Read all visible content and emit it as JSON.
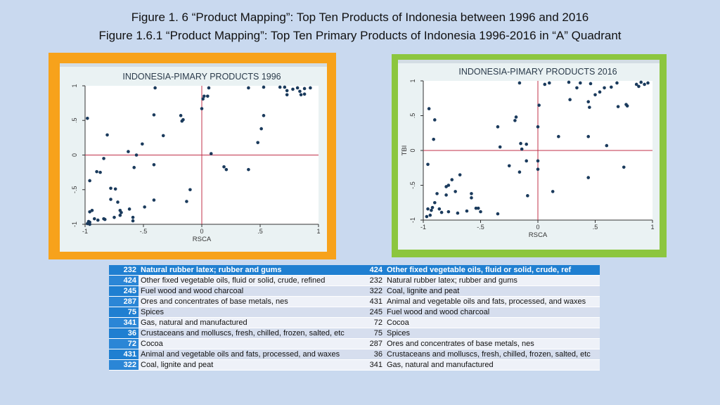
{
  "header": {
    "title": "Figure 1. 6 “Product Mapping”: Top Ten Products of Indonesia between 1996 and 2016",
    "subtitle": "Figure 1.6.1 “Product Mapping”: Top Ten Primary Products of Indonesia 1996-2016 in “A” Quadrant"
  },
  "colors": {
    "left_frame": "#f7a21b",
    "right_frame": "#8cc63f",
    "points": "#1a3a5c",
    "reference_lines": "#c0304a"
  },
  "chart_data": [
    {
      "type": "scatter",
      "title": "INDONESIA-PIMARY PRODUCTS 1996",
      "xlabel": "RSCA",
      "ylabel": "",
      "xlim": [
        -1,
        1
      ],
      "ylim": [
        -1,
        1
      ],
      "xticks": [
        "-1",
        "-.5",
        "0",
        ".5",
        "1"
      ],
      "yticks": [
        "-1",
        "-.5",
        "0",
        ".5",
        "1"
      ],
      "reference_lines": {
        "x": 0,
        "y": 0
      },
      "points": [
        [
          -0.4,
          0.97
        ],
        [
          -0.41,
          0.58
        ],
        [
          -0.18,
          0.57
        ],
        [
          -0.16,
          0.51
        ],
        [
          -0.17,
          0.49
        ],
        [
          -0.33,
          0.28
        ],
        [
          0.0,
          0.67
        ],
        [
          0.01,
          0.81
        ],
        [
          0.02,
          0.85
        ],
        [
          0.05,
          0.85
        ],
        [
          0.06,
          0.97
        ],
        [
          0.4,
          0.97
        ],
        [
          0.53,
          0.98
        ],
        [
          0.67,
          0.98
        ],
        [
          0.71,
          0.98
        ],
        [
          0.73,
          0.93
        ],
        [
          0.73,
          0.87
        ],
        [
          0.78,
          0.95
        ],
        [
          0.82,
          0.97
        ],
        [
          0.84,
          0.92
        ],
        [
          0.85,
          0.87
        ],
        [
          0.88,
          0.96
        ],
        [
          0.88,
          0.88
        ],
        [
          0.93,
          0.97
        ],
        [
          0.53,
          0.57
        ],
        [
          0.51,
          0.38
        ],
        [
          0.48,
          0.18
        ],
        [
          0.08,
          0.02
        ],
        [
          -0.98,
          0.53
        ],
        [
          -0.81,
          0.29
        ],
        [
          -0.51,
          0.16
        ],
        [
          -0.63,
          0.05
        ],
        [
          -0.56,
          0.0
        ],
        [
          -0.84,
          -0.05
        ],
        [
          -0.9,
          -0.24
        ],
        [
          -0.87,
          -0.25
        ],
        [
          -0.96,
          -0.37
        ],
        [
          -0.58,
          -0.18
        ],
        [
          -0.41,
          -0.14
        ],
        [
          0.19,
          -0.17
        ],
        [
          0.21,
          -0.21
        ],
        [
          0.4,
          -0.21
        ],
        [
          -0.74,
          -0.49
        ],
        [
          -0.78,
          -0.48
        ],
        [
          -0.78,
          -0.64
        ],
        [
          -0.83,
          -0.93
        ],
        [
          -0.94,
          -0.8
        ],
        [
          -0.96,
          -0.82
        ],
        [
          -0.92,
          -0.92
        ],
        [
          -0.97,
          -0.96
        ],
        [
          -0.98,
          -0.99
        ],
        [
          -0.72,
          -0.68
        ],
        [
          -0.7,
          -0.8
        ],
        [
          -0.69,
          -0.83
        ],
        [
          -0.62,
          -0.78
        ],
        [
          -0.49,
          -0.75
        ],
        [
          -0.41,
          -0.65
        ],
        [
          -0.59,
          -0.9
        ],
        [
          -0.59,
          -0.95
        ],
        [
          -0.96,
          -0.97
        ],
        [
          -0.96,
          -1.0
        ],
        [
          -0.1,
          -0.5
        ],
        [
          -0.13,
          -0.67
        ],
        [
          -0.7,
          -0.87
        ],
        [
          -0.75,
          -0.9
        ],
        [
          -0.84,
          -0.92
        ],
        [
          -0.89,
          -0.94
        ]
      ]
    },
    {
      "type": "scatter",
      "title": "INDONESIA-PIMARY PRODUCTS 2016",
      "xlabel": "RSCA",
      "ylabel": "TBI",
      "xlim": [
        -1,
        1
      ],
      "ylim": [
        -1,
        1
      ],
      "xticks": [
        "-1",
        "-.5",
        "0",
        ".5",
        "1"
      ],
      "yticks": [
        "-1",
        "-.5",
        "0",
        ".5",
        "1"
      ],
      "reference_lines": {
        "x": 0,
        "y": 0
      },
      "points": [
        [
          -0.95,
          0.6
        ],
        [
          -0.9,
          0.44
        ],
        [
          -0.91,
          0.16
        ],
        [
          -0.2,
          0.43
        ],
        [
          -0.19,
          0.48
        ],
        [
          -0.16,
          0.97
        ],
        [
          0.01,
          0.65
        ],
        [
          0.06,
          0.95
        ],
        [
          0.1,
          0.97
        ],
        [
          0.27,
          0.98
        ],
        [
          0.28,
          0.73
        ],
        [
          0.34,
          0.9
        ],
        [
          0.37,
          0.97
        ],
        [
          0.44,
          0.7
        ],
        [
          0.45,
          0.62
        ],
        [
          0.46,
          0.96
        ],
        [
          0.5,
          0.8
        ],
        [
          0.54,
          0.84
        ],
        [
          0.58,
          0.9
        ],
        [
          0.64,
          0.91
        ],
        [
          0.69,
          0.97
        ],
        [
          0.7,
          0.63
        ],
        [
          0.77,
          0.66
        ],
        [
          0.78,
          0.64
        ],
        [
          0.86,
          0.95
        ],
        [
          0.88,
          0.92
        ],
        [
          0.9,
          0.98
        ],
        [
          0.93,
          0.95
        ],
        [
          0.96,
          0.97
        ],
        [
          0.0,
          0.34
        ],
        [
          -0.35,
          0.34
        ],
        [
          0.18,
          0.2
        ],
        [
          0.44,
          0.2
        ],
        [
          0.6,
          0.07
        ],
        [
          -0.33,
          0.05
        ],
        [
          -0.15,
          0.1
        ],
        [
          -0.14,
          0.02
        ],
        [
          -0.1,
          0.09
        ],
        [
          0.0,
          -0.15
        ],
        [
          -0.25,
          -0.22
        ],
        [
          -0.16,
          -0.31
        ],
        [
          -0.1,
          -0.15
        ],
        [
          -0.96,
          -0.2
        ],
        [
          -0.68,
          -0.35
        ],
        [
          -0.75,
          -0.42
        ],
        [
          -0.78,
          -0.5
        ],
        [
          -0.8,
          -0.52
        ],
        [
          -0.72,
          -0.59
        ],
        [
          -0.58,
          -0.62
        ],
        [
          -0.58,
          -0.68
        ],
        [
          -0.8,
          -0.64
        ],
        [
          -0.88,
          -0.62
        ],
        [
          -0.9,
          -0.75
        ],
        [
          -0.92,
          -0.82
        ],
        [
          -0.93,
          -0.86
        ],
        [
          -0.96,
          -0.84
        ],
        [
          -0.97,
          -0.95
        ],
        [
          -0.94,
          -0.93
        ],
        [
          -0.86,
          -0.84
        ],
        [
          -0.84,
          -0.89
        ],
        [
          -0.78,
          -0.88
        ],
        [
          -0.7,
          -0.9
        ],
        [
          -0.62,
          -0.87
        ],
        [
          -0.54,
          -0.83
        ],
        [
          -0.52,
          -0.83
        ],
        [
          -0.5,
          -0.88
        ],
        [
          -0.35,
          -0.91
        ],
        [
          -0.09,
          -0.65
        ],
        [
          0.13,
          -0.59
        ],
        [
          0.44,
          -0.39
        ],
        [
          0.75,
          -0.24
        ],
        [
          0.0,
          -0.27
        ]
      ]
    }
  ],
  "table": {
    "rows": [
      {
        "lcode": "232",
        "ldesc": "Natural rubber latex; rubber and gums",
        "rcode": "424",
        "rdesc": "Other fixed vegetable oils, fluid or solid, crude, ref"
      },
      {
        "lcode": "424",
        "ldesc": "Other fixed vegetable oils, fluid or solid, crude, refined",
        "rcode": "232",
        "rdesc": "Natural rubber latex; rubber and gums"
      },
      {
        "lcode": "245",
        "ldesc": "Fuel wood and wood charcoal",
        "rcode": "322",
        "rdesc": "Coal, lignite and peat"
      },
      {
        "lcode": "287",
        "ldesc": "Ores and concentrates of base metals, nes",
        "rcode": "431",
        "rdesc": "Animal and vegetable oils and fats, processed, and waxes"
      },
      {
        "lcode": "75",
        "ldesc": "Spices",
        "rcode": "245",
        "rdesc": "Fuel wood and wood charcoal"
      },
      {
        "lcode": "341",
        "ldesc": "Gas, natural and manufactured",
        "rcode": "72",
        "rdesc": "Cocoa"
      },
      {
        "lcode": "36",
        "ldesc": "Crustaceans and molluscs, fresh, chilled, frozen, salted, etc",
        "rcode": "75",
        "rdesc": "Spices"
      },
      {
        "lcode": "72",
        "ldesc": "Cocoa",
        "rcode": "287",
        "rdesc": "Ores and concentrates of base metals, nes"
      },
      {
        "lcode": "431",
        "ldesc": "Animal and vegetable oils and fats, processed, and waxes",
        "rcode": "36",
        "rdesc": "Crustaceans and molluscs, fresh, chilled, frozen, salted, etc"
      },
      {
        "lcode": "322",
        "ldesc": "Coal, lignite and peat",
        "rcode": "341",
        "rdesc": "Gas, natural and manufactured"
      }
    ]
  }
}
